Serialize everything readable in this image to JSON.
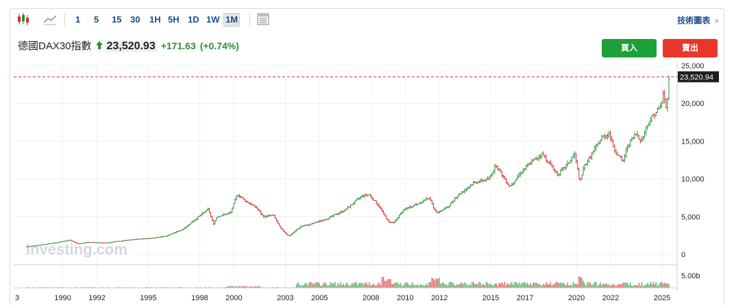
{
  "toolbar": {
    "candlestick_icon": "candlestick-icon",
    "area_icon": "area-chart-icon",
    "timeframes": [
      "1",
      "5",
      "15",
      "30",
      "1H",
      "5H",
      "1D",
      "1W",
      "1M"
    ],
    "active_timeframe": "1M",
    "table_icon": "table-icon",
    "technical_link": "技術圖表",
    "technical_chevron": "»"
  },
  "quote": {
    "name": "德國DAX30指數",
    "price": "23,520.93",
    "change": "+171.63",
    "change_pct": "(+0.74%)",
    "direction_icon": "arrow-up-icon"
  },
  "actions": {
    "buy_label": "買入",
    "sell_label": "賣出"
  },
  "colors": {
    "up": "#2e8b3a",
    "down": "#d0312d",
    "buy": "#1ba03a",
    "sell": "#e8362a",
    "current_line": "#c0392b",
    "link": "#1a4d8c"
  },
  "watermark": "Investing.com",
  "chart_data": {
    "type": "bar",
    "style": "ohlc-monthly",
    "title": "德國DAX30指數",
    "xlabel": "",
    "ylabel": "",
    "x_tick_labels": [
      "1990",
      "1992",
      "1995",
      "1998",
      "2000",
      "2003",
      "2005",
      "2008",
      "2010",
      "2012",
      "2015",
      "2017",
      "2020",
      "2022",
      "2025"
    ],
    "x_cut_label": "3",
    "y_tick_labels": [
      "25,000",
      "20,000",
      "15,000",
      "10,000",
      "5,000",
      "0"
    ],
    "ylim": [
      0,
      25000
    ],
    "current_price_label": "23,520.94",
    "current_price": 23520.94,
    "volume_tick_label": "5.00b",
    "volume_max": 5000000000,
    "grid": true,
    "price_anchors": [
      [
        1987.9,
        1000
      ],
      [
        1989.5,
        1500
      ],
      [
        1990.4,
        1900
      ],
      [
        1990.9,
        1400
      ],
      [
        1991.5,
        1600
      ],
      [
        1992.5,
        1500
      ],
      [
        1993.5,
        1800
      ],
      [
        1994.5,
        2050
      ],
      [
        1995.0,
        2100
      ],
      [
        1996.0,
        2400
      ],
      [
        1997.0,
        3300
      ],
      [
        1997.6,
        4400
      ],
      [
        1998.5,
        6000
      ],
      [
        1998.8,
        4000
      ],
      [
        1999.0,
        5000
      ],
      [
        1999.8,
        5500
      ],
      [
        2000.2,
        8000
      ],
      [
        2000.6,
        7200
      ],
      [
        2001.3,
        6200
      ],
      [
        2001.7,
        5000
      ],
      [
        2002.3,
        5200
      ],
      [
        2002.7,
        3500
      ],
      [
        2003.2,
        2400
      ],
      [
        2003.9,
        3700
      ],
      [
        2004.5,
        4000
      ],
      [
        2005.5,
        4800
      ],
      [
        2006.5,
        5900
      ],
      [
        2007.5,
        7800
      ],
      [
        2007.9,
        7900
      ],
      [
        2008.5,
        6300
      ],
      [
        2009.0,
        4400
      ],
      [
        2009.3,
        4100
      ],
      [
        2009.9,
        5900
      ],
      [
        2010.8,
        6800
      ],
      [
        2011.4,
        7500
      ],
      [
        2011.8,
        5500
      ],
      [
        2012.5,
        6300
      ],
      [
        2013.0,
        7700
      ],
      [
        2014.0,
        9500
      ],
      [
        2014.9,
        10000
      ],
      [
        2015.3,
        11900
      ],
      [
        2015.8,
        10000
      ],
      [
        2016.1,
        9000
      ],
      [
        2016.8,
        11000
      ],
      [
        2017.5,
        12500
      ],
      [
        2018.0,
        13300
      ],
      [
        2018.9,
        10600
      ],
      [
        2019.5,
        12000
      ],
      [
        2019.9,
        13300
      ],
      [
        2020.2,
        9500
      ],
      [
        2020.4,
        11500
      ],
      [
        2020.9,
        13300
      ],
      [
        2021.5,
        15500
      ],
      [
        2021.9,
        16000
      ],
      [
        2022.2,
        14000
      ],
      [
        2022.7,
        12200
      ],
      [
        2023.0,
        14500
      ],
      [
        2023.5,
        16000
      ],
      [
        2023.8,
        15000
      ],
      [
        2024.1,
        17000
      ],
      [
        2024.5,
        18500
      ],
      [
        2024.9,
        19500
      ],
      [
        2025.1,
        21500
      ],
      [
        2025.25,
        19000
      ],
      [
        2025.4,
        23520
      ]
    ],
    "volume_active_from": 2003.6
  }
}
